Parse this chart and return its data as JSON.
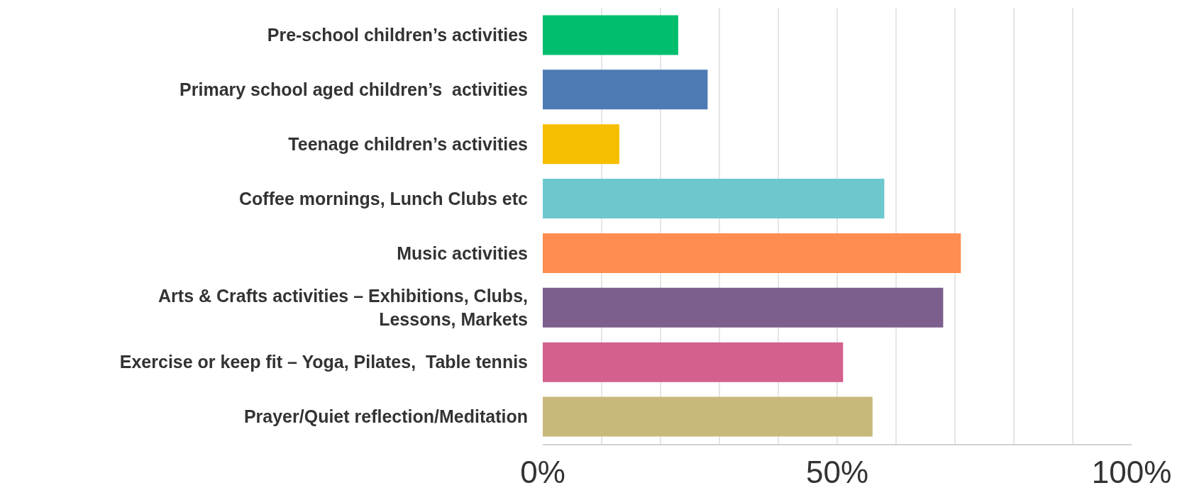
{
  "chart_data": {
    "type": "bar",
    "orientation": "horizontal",
    "categories": [
      "Pre-school children’s activities",
      "Primary school aged children’s  activities",
      "Teenage children’s activities",
      "Coffee mornings, Lunch Clubs etc",
      "Music activities",
      "Arts & Crafts activities – Exhibitions, Clubs,\nLessons, Markets",
      "Exercise or keep fit – Yoga, Pilates,  Table tennis",
      "Prayer/Quiet reflection/Meditation"
    ],
    "values": [
      23,
      28,
      13,
      58,
      71,
      68,
      51,
      56
    ],
    "colors": [
      "#00be6e",
      "#4e7ab4",
      "#f6be00",
      "#6cc8cc",
      "#ff8c50",
      "#7d5f8e",
      "#d4608e",
      "#c8b87a"
    ],
    "xlim": [
      0,
      100
    ],
    "xticks": [
      {
        "value": 0,
        "label": "0%"
      },
      {
        "value": 10,
        "label": null
      },
      {
        "value": 20,
        "label": null
      },
      {
        "value": 30,
        "label": null
      },
      {
        "value": 40,
        "label": null
      },
      {
        "value": 50,
        "label": "50%"
      },
      {
        "value": 60,
        "label": null
      },
      {
        "value": 70,
        "label": null
      },
      {
        "value": 80,
        "label": null
      },
      {
        "value": 90,
        "label": null
      },
      {
        "value": 100,
        "label": "100%"
      }
    ],
    "grid": "x",
    "legend": false
  }
}
